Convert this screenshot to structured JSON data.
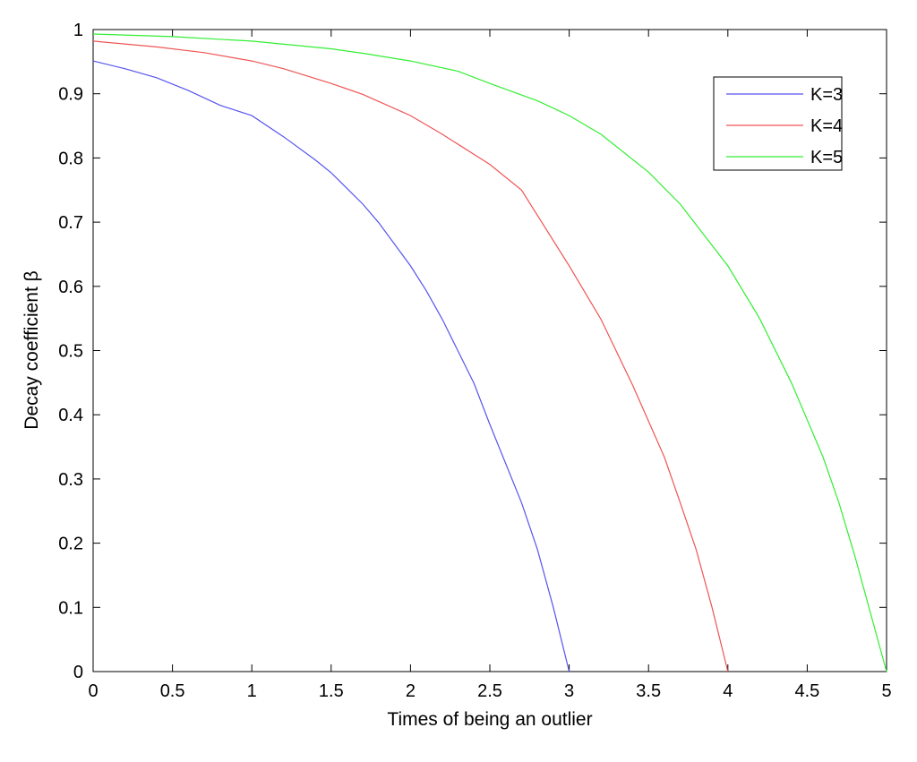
{
  "chart_data": {
    "type": "line",
    "title": "",
    "xlabel": "Times of being an outlier",
    "ylabel": "Decay coefficient β",
    "xlim": [
      0,
      5
    ],
    "ylim": [
      0,
      1
    ],
    "xticks": [
      "0",
      "0.5",
      "1",
      "1.5",
      "2",
      "2.5",
      "3",
      "3.5",
      "4",
      "4.5",
      "5"
    ],
    "yticks": [
      "0",
      "0.1",
      "0.2",
      "0.3",
      "0.4",
      "0.5",
      "0.6",
      "0.7",
      "0.8",
      "0.9",
      "1"
    ],
    "grid": false,
    "legend_position": "top-right",
    "series": [
      {
        "name": "K=3",
        "color": "#5555ee",
        "points": [
          [
            0,
            0.951
          ],
          [
            0.2,
            0.939
          ],
          [
            0.4,
            0.925
          ],
          [
            0.6,
            0.905
          ],
          [
            0.8,
            0.882
          ],
          [
            1.0,
            0.866
          ],
          [
            1.2,
            0.833
          ],
          [
            1.4,
            0.797
          ],
          [
            1.5,
            0.777
          ],
          [
            1.7,
            0.728
          ],
          [
            1.8,
            0.699
          ],
          [
            2.0,
            0.632
          ],
          [
            2.1,
            0.593
          ],
          [
            2.2,
            0.549
          ],
          [
            2.4,
            0.449
          ],
          [
            2.5,
            0.385
          ],
          [
            2.7,
            0.263
          ],
          [
            2.8,
            0.19
          ],
          [
            2.9,
            0.1
          ],
          [
            3.0,
            0
          ]
        ]
      },
      {
        "name": "K=4",
        "color": "#ee5555",
        "points": [
          [
            0,
            0.982
          ],
          [
            0.4,
            0.973
          ],
          [
            0.7,
            0.964
          ],
          [
            1.0,
            0.951
          ],
          [
            1.2,
            0.939
          ],
          [
            1.5,
            0.916
          ],
          [
            1.7,
            0.899
          ],
          [
            2.0,
            0.866
          ],
          [
            2.2,
            0.837
          ],
          [
            2.5,
            0.79
          ],
          [
            2.7,
            0.75
          ],
          [
            3.0,
            0.632
          ],
          [
            3.2,
            0.549
          ],
          [
            3.4,
            0.446
          ],
          [
            3.6,
            0.334
          ],
          [
            3.7,
            0.263
          ],
          [
            3.8,
            0.19
          ],
          [
            3.9,
            0.1
          ],
          [
            4.0,
            0
          ]
        ]
      },
      {
        "name": "K=5",
        "color": "#33ee33",
        "points": [
          [
            0,
            0.993
          ],
          [
            0.5,
            0.989
          ],
          [
            1.0,
            0.982
          ],
          [
            1.5,
            0.97
          ],
          [
            1.7,
            0.963
          ],
          [
            2.0,
            0.951
          ],
          [
            2.3,
            0.935
          ],
          [
            2.5,
            0.916
          ],
          [
            2.8,
            0.889
          ],
          [
            3.0,
            0.866
          ],
          [
            3.2,
            0.837
          ],
          [
            3.5,
            0.778
          ],
          [
            3.7,
            0.728
          ],
          [
            4.0,
            0.632
          ],
          [
            4.2,
            0.55
          ],
          [
            4.4,
            0.45
          ],
          [
            4.6,
            0.334
          ],
          [
            4.7,
            0.263
          ],
          [
            4.8,
            0.18
          ],
          [
            4.9,
            0.09
          ],
          [
            5.0,
            0
          ]
        ]
      }
    ]
  }
}
